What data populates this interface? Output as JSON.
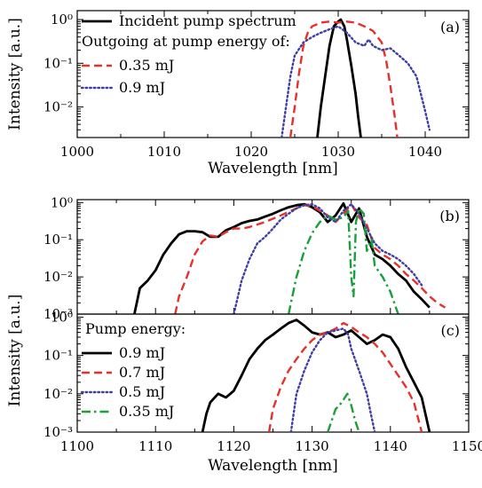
{
  "chart_data": [
    {
      "id": "a",
      "type": "line",
      "yscale": "log",
      "xlim": [
        1000,
        1045
      ],
      "ylim": [
        0.002,
        1.6
      ],
      "xticks": [
        1000,
        1010,
        1020,
        1030,
        1040
      ],
      "xticklabels": [
        "1000",
        "1010",
        "1020",
        "1030",
        "1040"
      ],
      "yticks": [
        0.01,
        0.1,
        1
      ],
      "yticklabels": [
        "10⁻²",
        "10⁻¹",
        "10⁰"
      ],
      "xlabel": "Wavelength [nm]",
      "ylabel": "Intensity [a.u.]",
      "panel_label": "(a)",
      "legend_header": "Outgoing at pump energy of:",
      "series": [
        {
          "name": "Incident pump spectrum",
          "color": "#000000",
          "style": "solid",
          "x": [
            1027.6,
            1028.0,
            1028.5,
            1029.0,
            1029.5,
            1030.0,
            1030.3,
            1030.7,
            1031.0,
            1031.5,
            1032.0,
            1032.3,
            1032.6
          ],
          "y": [
            0.002,
            0.01,
            0.05,
            0.25,
            0.7,
            0.9,
            1.0,
            0.7,
            0.35,
            0.09,
            0.02,
            0.006,
            0.002
          ]
        },
        {
          "name": "0.35 mJ",
          "color": "#e8302a",
          "style": "dashed",
          "x": [
            1024.5,
            1025.0,
            1025.5,
            1026.0,
            1026.5,
            1027.0,
            1028.0,
            1029.0,
            1030.0,
            1031.0,
            1032.0,
            1033.0,
            1034.0,
            1035.0,
            1035.5,
            1036.0,
            1036.5,
            1036.8
          ],
          "y": [
            0.002,
            0.01,
            0.06,
            0.25,
            0.5,
            0.7,
            0.85,
            0.9,
            0.85,
            0.9,
            0.85,
            0.7,
            0.55,
            0.3,
            0.12,
            0.03,
            0.006,
            0.002
          ]
        },
        {
          "name": "0.9 mJ",
          "color": "#3e3fa0",
          "style": "dotted",
          "x": [
            1023.5,
            1024.0,
            1024.5,
            1025.0,
            1026.0,
            1027.0,
            1028.0,
            1029.0,
            1030.0,
            1031.0,
            1032.0,
            1033.0,
            1033.5,
            1034.0,
            1035.0,
            1036.0,
            1037.0,
            1038.0,
            1039.0,
            1039.5,
            1040.0,
            1040.5
          ],
          "y": [
            0.002,
            0.01,
            0.05,
            0.15,
            0.3,
            0.4,
            0.5,
            0.6,
            0.7,
            0.5,
            0.3,
            0.25,
            0.35,
            0.25,
            0.2,
            0.22,
            0.15,
            0.1,
            0.05,
            0.02,
            0.008,
            0.003
          ]
        }
      ]
    },
    {
      "id": "b",
      "type": "line",
      "yscale": "log",
      "xlim": [
        1100,
        1150
      ],
      "ylim": [
        0.001,
        1.2
      ],
      "yticks": [
        0.001,
        0.01,
        0.1,
        1
      ],
      "yticklabels": [
        "10⁻³",
        "10⁻²",
        "10⁻¹",
        "10⁰"
      ],
      "panel_label": "(b)",
      "series": [
        {
          "name": "0.9 mJ",
          "color": "#000000",
          "style": "solid",
          "x": [
            1107.3,
            1108,
            1109,
            1110,
            1111,
            1112,
            1113,
            1114,
            1115,
            1116,
            1117,
            1118,
            1119,
            1120,
            1121,
            1122,
            1123,
            1124,
            1125,
            1126,
            1127,
            1128,
            1129,
            1130,
            1131,
            1132,
            1133,
            1134,
            1135,
            1136,
            1137,
            1138,
            1139,
            1140,
            1141,
            1142,
            1143,
            1144,
            1145
          ],
          "y": [
            0.001,
            0.005,
            0.008,
            0.015,
            0.04,
            0.08,
            0.14,
            0.17,
            0.17,
            0.16,
            0.12,
            0.12,
            0.18,
            0.22,
            0.28,
            0.32,
            0.35,
            0.42,
            0.5,
            0.62,
            0.75,
            0.85,
            0.9,
            0.75,
            0.55,
            0.3,
            0.45,
            0.95,
            0.3,
            0.7,
            0.12,
            0.04,
            0.03,
            0.02,
            0.012,
            0.008,
            0.004,
            0.0025,
            0.0015
          ]
        },
        {
          "name": "0.7 mJ",
          "color": "#e8302a",
          "style": "dashed",
          "x": [
            1112.5,
            1113,
            1114,
            1115,
            1116,
            1117,
            1118,
            1119,
            1120,
            1121,
            1122,
            1124,
            1126,
            1128,
            1129,
            1130,
            1131,
            1132,
            1133,
            1134,
            1135,
            1136,
            1137,
            1138,
            1139,
            1140,
            1141,
            1142,
            1143,
            1144,
            1145,
            1146,
            1147
          ],
          "y": [
            0.001,
            0.003,
            0.01,
            0.04,
            0.09,
            0.13,
            0.12,
            0.16,
            0.2,
            0.2,
            0.22,
            0.3,
            0.45,
            0.7,
            0.85,
            0.8,
            0.6,
            0.45,
            0.3,
            0.5,
            0.9,
            0.4,
            0.25,
            0.06,
            0.04,
            0.03,
            0.02,
            0.012,
            0.008,
            0.005,
            0.003,
            0.002,
            0.0015
          ]
        },
        {
          "name": "0.5 mJ",
          "color": "#3e3fa0",
          "style": "dotted",
          "x": [
            1120,
            1121,
            1122,
            1123,
            1124,
            1125,
            1126,
            1127,
            1128,
            1129,
            1130,
            1131,
            1132,
            1133,
            1134,
            1135,
            1136,
            1137,
            1138,
            1139,
            1140,
            1141,
            1142,
            1143,
            1144
          ],
          "y": [
            0.001,
            0.008,
            0.03,
            0.08,
            0.12,
            0.2,
            0.35,
            0.5,
            0.7,
            0.85,
            0.9,
            0.7,
            0.4,
            0.3,
            0.6,
            0.9,
            0.5,
            0.2,
            0.08,
            0.05,
            0.04,
            0.03,
            0.02,
            0.012,
            0.006
          ]
        },
        {
          "name": "0.35 mJ",
          "color": "#1aa03a",
          "style": "dashdot",
          "x": [
            1127,
            1128,
            1129,
            1130,
            1131,
            1132,
            1133,
            1134,
            1134.6,
            1135,
            1135.3,
            1135.6,
            1136,
            1136.6,
            1137,
            1137.6,
            1138,
            1139,
            1140,
            1141
          ],
          "y": [
            0.001,
            0.01,
            0.05,
            0.15,
            0.3,
            0.45,
            0.35,
            0.4,
            0.6,
            0.01,
            0.003,
            0.3,
            0.7,
            0.5,
            0.05,
            0.1,
            0.02,
            0.01,
            0.004,
            0.001
          ]
        }
      ]
    },
    {
      "id": "c",
      "type": "line",
      "yscale": "log",
      "xlim": [
        1100,
        1150
      ],
      "ylim": [
        0.001,
        1.2
      ],
      "xticks": [
        1100,
        1110,
        1120,
        1130,
        1140,
        1150
      ],
      "xticklabels": [
        "1100",
        "1110",
        "1120",
        "1130",
        "1140",
        "1150"
      ],
      "yticks": [
        0.001,
        0.01,
        0.1,
        1
      ],
      "yticklabels": [
        "10⁻³",
        "10⁻²",
        "10⁻¹",
        "10⁰"
      ],
      "xlabel": "Wavelength [nm]",
      "ylabel": "Intensity [a.u.]",
      "panel_label": "(c)",
      "legend_header": "Pump energy:",
      "series": [
        {
          "name": "0.9 mJ",
          "color": "#000000",
          "style": "solid",
          "x": [
            1116,
            1116.5,
            1117,
            1118,
            1119,
            1120,
            1121,
            1122,
            1123,
            1124,
            1125,
            1126,
            1127,
            1128,
            1129,
            1130,
            1131,
            1132,
            1133,
            1134,
            1135,
            1136,
            1137,
            1138,
            1139,
            1140,
            1141,
            1142,
            1143,
            1144,
            1145
          ],
          "y": [
            0.001,
            0.003,
            0.006,
            0.01,
            0.008,
            0.012,
            0.03,
            0.08,
            0.15,
            0.25,
            0.35,
            0.5,
            0.7,
            0.85,
            0.6,
            0.4,
            0.35,
            0.4,
            0.3,
            0.35,
            0.45,
            0.3,
            0.2,
            0.25,
            0.35,
            0.3,
            0.15,
            0.05,
            0.02,
            0.008,
            0.001
          ]
        },
        {
          "name": "0.7 mJ",
          "color": "#e8302a",
          "style": "dashed",
          "x": [
            1124.5,
            1125,
            1126,
            1127,
            1128,
            1129,
            1130,
            1131,
            1132,
            1133,
            1134,
            1135,
            1136,
            1137,
            1138,
            1139,
            1140,
            1141,
            1142,
            1143,
            1144
          ],
          "y": [
            0.001,
            0.004,
            0.015,
            0.04,
            0.08,
            0.15,
            0.25,
            0.35,
            0.4,
            0.5,
            0.7,
            0.55,
            0.4,
            0.3,
            0.2,
            0.12,
            0.06,
            0.03,
            0.015,
            0.006,
            0.001
          ]
        },
        {
          "name": "0.5 mJ",
          "color": "#3e3fa0",
          "style": "dotted",
          "x": [
            1127.3,
            1128,
            1129,
            1130,
            1131,
            1132,
            1133,
            1134,
            1134.6,
            1135,
            1136,
            1137,
            1137.5,
            1138
          ],
          "y": [
            0.001,
            0.01,
            0.04,
            0.12,
            0.25,
            0.4,
            0.45,
            0.5,
            0.35,
            0.15,
            0.04,
            0.01,
            0.003,
            0.001
          ]
        },
        {
          "name": "0.35 mJ",
          "color": "#1aa03a",
          "style": "dashdot",
          "x": [
            1132,
            1132.5,
            1133,
            1133.5,
            1134,
            1134.5,
            1135,
            1135.5,
            1136
          ],
          "y": [
            0.001,
            0.002,
            0.004,
            0.005,
            0.007,
            0.01,
            0.005,
            0.002,
            0.001
          ]
        }
      ]
    }
  ]
}
